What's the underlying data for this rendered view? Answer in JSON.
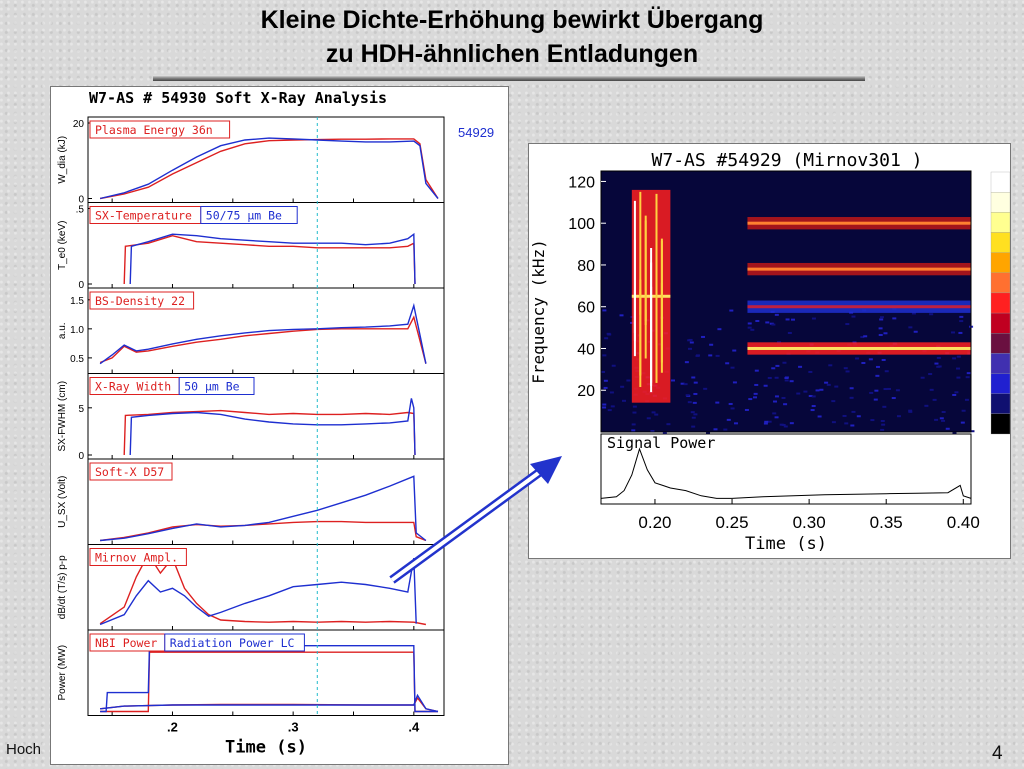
{
  "slide": {
    "title_line1": "Kleine Dichte-Erhöhung bewirkt Übergang",
    "title_line2": "zu HDH-ähnlichen Entladungen",
    "footer_left": "Hoch",
    "page_number": "4"
  },
  "chart_data": [
    {
      "type": "line",
      "title": "W7-AS # 54930   Soft X-Ray Analysis",
      "shot_label": "54929",
      "xlabel": "Time (s)",
      "x_ticks": [
        ".2",
        ".3",
        ".4"
      ],
      "xlim": [
        0.13,
        0.425
      ],
      "cursor_time": 0.32,
      "series_colors": {
        "red": "#dd2020",
        "blue": "#1e2fd0"
      },
      "panels": [
        {
          "id": "wdia",
          "ylabel": "W_dia (kJ)",
          "y_ticks": [
            "20",
            "0"
          ],
          "ylim": [
            0,
            20
          ],
          "legend": [
            "Plasma Energy  36n"
          ],
          "series": [
            {
              "color": "red",
              "x": [
                0.14,
                0.16,
                0.18,
                0.2,
                0.22,
                0.24,
                0.26,
                0.28,
                0.3,
                0.32,
                0.34,
                0.36,
                0.38,
                0.4,
                0.405,
                0.41,
                0.42
              ],
              "y": [
                0,
                1.2,
                3,
                6.5,
                9.5,
                12.5,
                14.5,
                15.3,
                15.5,
                15.6,
                15.7,
                15.7,
                15.8,
                15.8,
                14.5,
                5,
                0
              ]
            },
            {
              "color": "blue",
              "x": [
                0.14,
                0.16,
                0.18,
                0.2,
                0.22,
                0.24,
                0.26,
                0.28,
                0.3,
                0.32,
                0.34,
                0.36,
                0.38,
                0.4,
                0.405,
                0.41,
                0.42
              ],
              "y": [
                0,
                1.5,
                3.8,
                7.5,
                11,
                14,
                15.5,
                16,
                15.8,
                15.5,
                15.2,
                15,
                15,
                15.2,
                14,
                4,
                0
              ]
            }
          ]
        },
        {
          "id": "te0",
          "ylabel": "T_e0 (keV)",
          "y_ticks": [
            ".5",
            "0"
          ],
          "ylim": [
            0,
            0.5
          ],
          "legend": [
            "SX-Temperature",
            "50/75  μm Be"
          ],
          "series": [
            {
              "color": "red",
              "x": [
                0.16,
                0.161,
                0.18,
                0.2,
                0.22,
                0.24,
                0.26,
                0.28,
                0.3,
                0.32,
                0.34,
                0.36,
                0.38,
                0.395,
                0.4,
                0.401
              ],
              "y": [
                0,
                0.25,
                0.27,
                0.32,
                0.28,
                0.27,
                0.26,
                0.25,
                0.25,
                0.24,
                0.24,
                0.24,
                0.24,
                0.25,
                0.27,
                0
              ]
            },
            {
              "color": "blue",
              "x": [
                0.165,
                0.166,
                0.18,
                0.2,
                0.22,
                0.24,
                0.26,
                0.28,
                0.3,
                0.32,
                0.34,
                0.36,
                0.38,
                0.395,
                0.4,
                0.401
              ],
              "y": [
                0,
                0.25,
                0.28,
                0.33,
                0.32,
                0.3,
                0.29,
                0.28,
                0.27,
                0.27,
                0.27,
                0.26,
                0.27,
                0.3,
                0.33,
                0
              ]
            }
          ]
        },
        {
          "id": "bs_density",
          "ylabel": "a.u.",
          "y_ticks": [
            "1.5",
            "1.0",
            "0.5"
          ],
          "ylim": [
            0.3,
            1.6
          ],
          "legend": [
            "BS-Density 22"
          ],
          "series": [
            {
              "color": "red",
              "x": [
                0.14,
                0.15,
                0.16,
                0.17,
                0.18,
                0.2,
                0.22,
                0.24,
                0.26,
                0.28,
                0.3,
                0.32,
                0.34,
                0.36,
                0.38,
                0.395,
                0.4,
                0.405,
                0.41
              ],
              "y": [
                0.42,
                0.5,
                0.7,
                0.6,
                0.62,
                0.7,
                0.77,
                0.82,
                0.88,
                0.92,
                0.96,
                0.99,
                1.0,
                1.0,
                1.0,
                1.0,
                1.2,
                0.8,
                0.4
              ]
            },
            {
              "color": "blue",
              "x": [
                0.14,
                0.15,
                0.16,
                0.17,
                0.18,
                0.2,
                0.22,
                0.24,
                0.26,
                0.28,
                0.3,
                0.32,
                0.34,
                0.36,
                0.38,
                0.395,
                0.4,
                0.405,
                0.41
              ],
              "y": [
                0.4,
                0.55,
                0.72,
                0.62,
                0.65,
                0.74,
                0.82,
                0.88,
                0.93,
                0.97,
                0.99,
                1.0,
                1.02,
                1.03,
                1.05,
                1.08,
                1.4,
                0.9,
                0.4
              ]
            }
          ]
        },
        {
          "id": "sx_fwhm",
          "ylabel": "SX-FWHM (cm)",
          "y_ticks": [
            "5",
            "0"
          ],
          "ylim": [
            0,
            8
          ],
          "legend": [
            "X-Ray Width",
            "50  μm Be"
          ],
          "series": [
            {
              "color": "red",
              "x": [
                0.16,
                0.161,
                0.18,
                0.2,
                0.22,
                0.24,
                0.26,
                0.28,
                0.3,
                0.32,
                0.34,
                0.36,
                0.38,
                0.395,
                0.4,
                0.401
              ],
              "y": [
                0,
                4.2,
                4.3,
                4.5,
                4.6,
                4.7,
                4.5,
                4.3,
                4.4,
                4.3,
                4.3,
                4.4,
                4.3,
                4.5,
                4.4,
                0
              ]
            },
            {
              "color": "blue",
              "x": [
                0.165,
                0.166,
                0.18,
                0.2,
                0.22,
                0.24,
                0.26,
                0.28,
                0.3,
                0.32,
                0.34,
                0.36,
                0.38,
                0.395,
                0.398,
                0.4,
                0.401
              ],
              "y": [
                0,
                4,
                4.2,
                4.4,
                4.5,
                4.3,
                3.8,
                3.5,
                3.3,
                3.2,
                3.2,
                3.3,
                3.4,
                3.6,
                6,
                5,
                0
              ]
            }
          ]
        },
        {
          "id": "usx",
          "ylabel": "U_SX (Volt)",
          "y_ticks": [],
          "ylim": [
            0,
            10
          ],
          "legend": [
            "Soft-X D57"
          ],
          "series": [
            {
              "color": "red",
              "x": [
                0.14,
                0.16,
                0.18,
                0.2,
                0.22,
                0.24,
                0.26,
                0.28,
                0.3,
                0.32,
                0.34,
                0.36,
                0.38,
                0.4,
                0.402,
                0.41
              ],
              "y": [
                0,
                0.4,
                1.0,
                1.8,
                2.1,
                1.9,
                2.0,
                2.2,
                2.4,
                2.5,
                2.5,
                2.4,
                2.4,
                2.4,
                0.5,
                0
              ]
            },
            {
              "color": "blue",
              "x": [
                0.14,
                0.16,
                0.18,
                0.2,
                0.22,
                0.24,
                0.26,
                0.28,
                0.3,
                0.32,
                0.34,
                0.36,
                0.38,
                0.4,
                0.402,
                0.41
              ],
              "y": [
                0,
                0.3,
                0.9,
                1.6,
                2.2,
                1.8,
                2.0,
                2.4,
                3.2,
                4.0,
                5.0,
                6.0,
                7.2,
                8.5,
                1,
                0
              ]
            }
          ]
        },
        {
          "id": "mirnov",
          "ylabel": "dB/dt (T/s) p-p",
          "y_ticks": [],
          "ylim": [
            0,
            10
          ],
          "legend": [
            "Mirnov Ampl."
          ],
          "series": [
            {
              "color": "red",
              "x": [
                0.14,
                0.16,
                0.17,
                0.18,
                0.19,
                0.2,
                0.21,
                0.22,
                0.23,
                0.24,
                0.26,
                0.28,
                0.3,
                0.32,
                0.34,
                0.36,
                0.38,
                0.4,
                0.41
              ],
              "y": [
                0.3,
                2.5,
                6.5,
                9.5,
                7,
                9,
                5,
                3,
                1.5,
                0.8,
                0.6,
                0.5,
                0.6,
                0.5,
                0.6,
                0.5,
                0.6,
                0.5,
                0.2
              ]
            },
            {
              "color": "blue",
              "x": [
                0.14,
                0.16,
                0.17,
                0.18,
                0.19,
                0.2,
                0.21,
                0.22,
                0.23,
                0.24,
                0.26,
                0.28,
                0.3,
                0.32,
                0.34,
                0.36,
                0.38,
                0.395,
                0.4,
                0.402
              ],
              "y": [
                0.2,
                1.5,
                4,
                6,
                4.5,
                5,
                4,
                2.5,
                1.3,
                1.8,
                3,
                4,
                5.2,
                5.5,
                5.8,
                5.5,
                5,
                4.5,
                9,
                0.3
              ]
            }
          ]
        },
        {
          "id": "power",
          "ylabel": "Power (MW)",
          "y_ticks": [],
          "ylim": [
            0,
            1.4
          ],
          "legend": [
            "NBI Power",
            "Radiation Power LC"
          ],
          "series": [
            {
              "color": "red",
              "x": [
                0.14,
                0.18,
                0.181,
                0.4,
                0.401,
                0.42
              ],
              "y": [
                0,
                0,
                1.1,
                1.1,
                0,
                0
              ]
            },
            {
              "color": "red",
              "x": [
                0.14,
                0.16,
                0.2,
                0.24,
                0.3,
                0.36,
                0.4,
                0.403,
                0.41,
                0.42
              ],
              "y": [
                0.05,
                0.1,
                0.12,
                0.13,
                0.13,
                0.12,
                0.12,
                0.25,
                0.05,
                0
              ]
            },
            {
              "color": "blue",
              "x": [
                0.14,
                0.145,
                0.146,
                0.18,
                0.181,
                0.4,
                0.401,
                0.42
              ],
              "y": [
                0,
                0,
                0.35,
                0.35,
                1.22,
                1.22,
                0,
                0
              ]
            },
            {
              "color": "blue",
              "x": [
                0.14,
                0.16,
                0.2,
                0.24,
                0.3,
                0.36,
                0.4,
                0.403,
                0.41,
                0.42
              ],
              "y": [
                0.05,
                0.1,
                0.12,
                0.12,
                0.12,
                0.12,
                0.12,
                0.3,
                0.05,
                0
              ]
            }
          ]
        }
      ]
    },
    {
      "type": "heatmap",
      "title": "W7-AS #54929  (Mirnov301 )",
      "ylabel": "Frequency (kHz)",
      "xlabel": "Time (s)",
      "y_ticks": [
        120,
        100,
        80,
        60,
        40,
        20
      ],
      "ylim": [
        0,
        125
      ],
      "x_ticks": [
        "0.20",
        "0.25",
        "0.30",
        "0.35",
        "0.40"
      ],
      "xlim": [
        0.165,
        0.405
      ],
      "colorbar": [
        "#ffffff",
        "#ffffe0",
        "#ffff90",
        "#ffe020",
        "#ffa500",
        "#ff7030",
        "#ff2020",
        "#c00020",
        "#6a1040",
        "#4030b0",
        "#2020d0",
        "#101070",
        "#000000"
      ],
      "bands": [
        {
          "t0": 0.185,
          "t1": 0.21,
          "f0": 15,
          "f1": 115,
          "intensity": "high"
        },
        {
          "t0": 0.26,
          "t1": 0.405,
          "f0": 38,
          "f1": 42,
          "intensity": "high"
        },
        {
          "t0": 0.26,
          "t1": 0.405,
          "f0": 76,
          "f1": 80,
          "intensity": "medium"
        },
        {
          "t0": 0.26,
          "t1": 0.405,
          "f0": 98,
          "f1": 102,
          "intensity": "medium"
        },
        {
          "t0": 0.26,
          "t1": 0.405,
          "f0": 58,
          "f1": 62,
          "intensity": "low"
        }
      ],
      "signal_power": {
        "label": "Signal Power",
        "x": [
          0.165,
          0.175,
          0.18,
          0.185,
          0.19,
          0.195,
          0.2,
          0.205,
          0.21,
          0.22,
          0.23,
          0.24,
          0.25,
          0.27,
          0.29,
          0.31,
          0.33,
          0.35,
          0.37,
          0.39,
          0.398,
          0.4,
          0.405
        ],
        "y": [
          0.05,
          0.08,
          0.2,
          0.5,
          1.0,
          0.6,
          0.35,
          0.3,
          0.25,
          0.2,
          0.1,
          0.05,
          0.05,
          0.08,
          0.1,
          0.12,
          0.13,
          0.14,
          0.15,
          0.16,
          0.3,
          0.1,
          0.05
        ]
      }
    }
  ]
}
